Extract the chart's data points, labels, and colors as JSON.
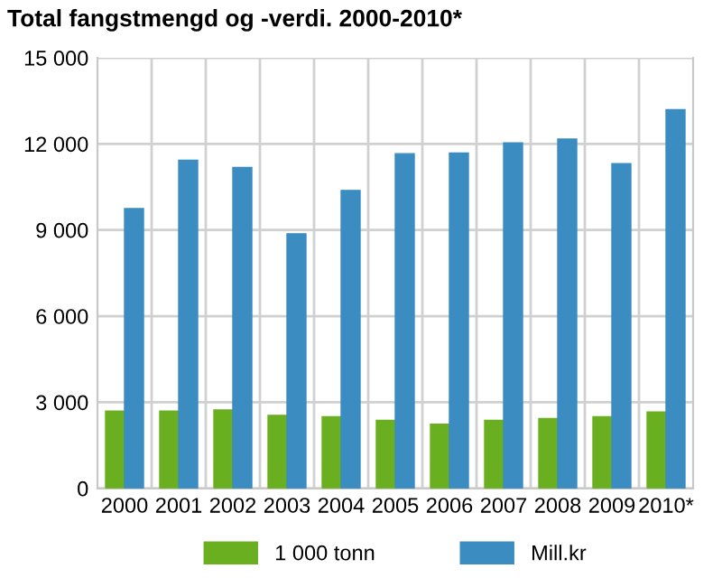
{
  "chart_data": {
    "type": "bar",
    "title": "Total fangstmengd og -verdi. 2000-2010*",
    "categories": [
      "2000",
      "2001",
      "2002",
      "2003",
      "2004",
      "2005",
      "2006",
      "2007",
      "2008",
      "2009",
      "2010*"
    ],
    "series": [
      {
        "name": "1 000 tonn",
        "color": "#6aaf1f",
        "values": [
          2690,
          2690,
          2730,
          2540,
          2500,
          2370,
          2240,
          2370,
          2430,
          2500,
          2660
        ]
      },
      {
        "name": "Mill.kr",
        "color": "#3a8cc1",
        "values": [
          9750,
          11430,
          11180,
          8870,
          10380,
          11660,
          11680,
          12040,
          12170,
          11310,
          13190
        ]
      }
    ],
    "ylim": [
      0,
      15000
    ],
    "yticks": [
      {
        "value": 0,
        "label": "0"
      },
      {
        "value": 3000,
        "label": "3 000"
      },
      {
        "value": 6000,
        "label": "6 000"
      },
      {
        "value": 9000,
        "label": "9 000"
      },
      {
        "value": 12000,
        "label": "12 000"
      },
      {
        "value": 15000,
        "label": "15 000"
      }
    ],
    "grid": true,
    "legend": "bottom"
  }
}
